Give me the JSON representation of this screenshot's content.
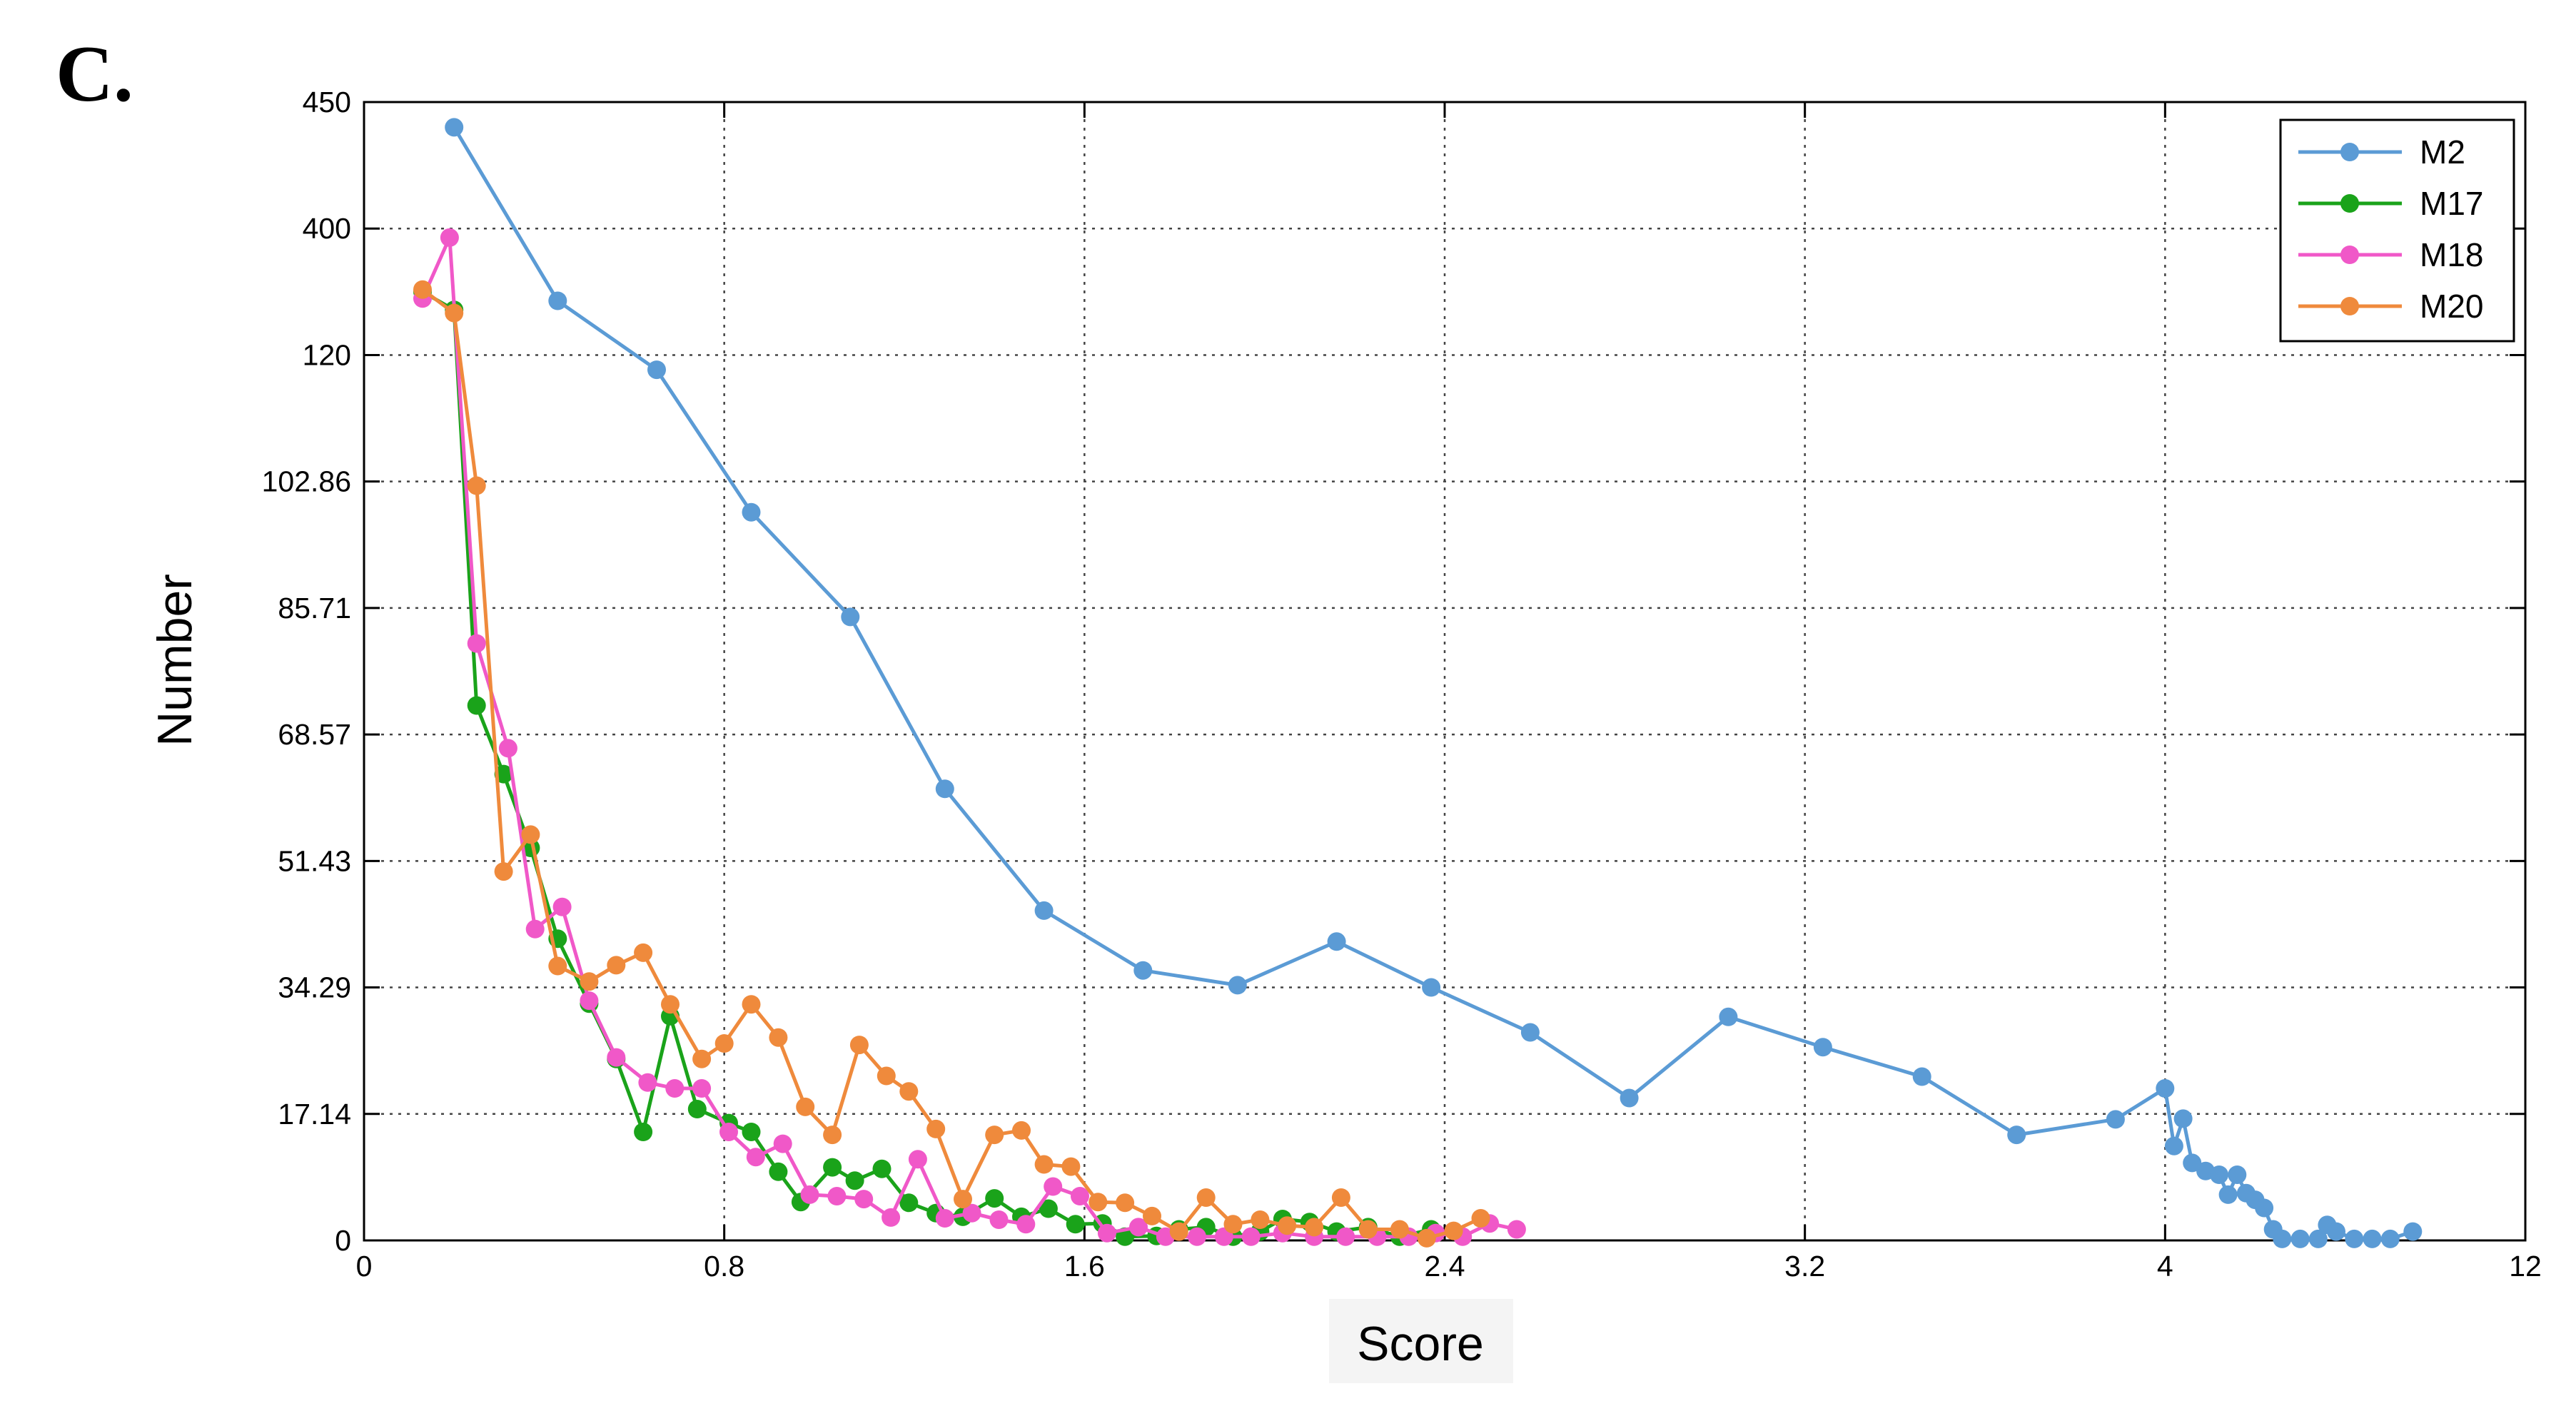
{
  "panel_label": "C.",
  "chart_data": {
    "type": "line",
    "xlabel": "Score",
    "ylabel": "Number",
    "x_tick_labels": [
      "0",
      "0.8",
      "1.6",
      "2.4",
      "3.2",
      "4",
      "12"
    ],
    "y_tick_labels": [
      "0",
      "17.14",
      "34.29",
      "51.43",
      "68.57",
      "85.71",
      "102.86",
      "120",
      "400",
      "450"
    ],
    "grid": true,
    "legend_position": "top-right",
    "series": [
      {
        "name": "M2",
        "color": "#5b9bd5",
        "points": [
          [
            0.2,
            440
          ],
          [
            0.43,
            240
          ],
          [
            0.65,
            118
          ],
          [
            0.86,
            98.7
          ],
          [
            1.08,
            84.5
          ],
          [
            1.29,
            61.2
          ],
          [
            1.51,
            44.7
          ],
          [
            1.73,
            36.6
          ],
          [
            1.94,
            34.6
          ],
          [
            2.16,
            40.5
          ],
          [
            2.37,
            34.3
          ],
          [
            2.59,
            28.2
          ],
          [
            2.81,
            19.3
          ],
          [
            3.03,
            30.3
          ],
          [
            3.24,
            26.2
          ],
          [
            3.46,
            22.2
          ],
          [
            3.67,
            14.3
          ],
          [
            3.89,
            16.4
          ],
          [
            4.0,
            20.6
          ],
          [
            4.02,
            12.8
          ],
          [
            4.04,
            16.5
          ],
          [
            4.06,
            10.5
          ],
          [
            4.09,
            9.4
          ],
          [
            4.12,
            8.9
          ],
          [
            4.14,
            6.2
          ],
          [
            4.16,
            8.9
          ],
          [
            4.18,
            6.4
          ],
          [
            4.2,
            5.5
          ],
          [
            4.22,
            4.4
          ],
          [
            4.24,
            1.5
          ],
          [
            4.26,
            0.2
          ],
          [
            4.3,
            0.2
          ],
          [
            4.34,
            0.2
          ],
          [
            4.36,
            2.1
          ],
          [
            4.38,
            1.2
          ],
          [
            4.42,
            0.2
          ],
          [
            4.46,
            0.2
          ],
          [
            4.5,
            0.2
          ],
          [
            4.55,
            1.2
          ]
        ]
      },
      {
        "name": "M17",
        "color": "#1aa31a",
        "points": [
          [
            0.13,
            260
          ],
          [
            0.2,
            220
          ],
          [
            0.25,
            72.5
          ],
          [
            0.31,
            63.2
          ],
          [
            0.37,
            53.2
          ],
          [
            0.43,
            40.9
          ],
          [
            0.5,
            32.1
          ],
          [
            0.56,
            24.6
          ],
          [
            0.62,
            14.7
          ],
          [
            0.68,
            30.4
          ],
          [
            0.74,
            17.8
          ],
          [
            0.81,
            15.9
          ],
          [
            0.86,
            14.7
          ],
          [
            0.92,
            9.3
          ],
          [
            0.97,
            5.2
          ],
          [
            1.04,
            9.9
          ],
          [
            1.09,
            8.1
          ],
          [
            1.15,
            9.7
          ],
          [
            1.21,
            5.1
          ],
          [
            1.27,
            3.7
          ],
          [
            1.33,
            3.2
          ],
          [
            1.4,
            5.7
          ],
          [
            1.46,
            3.2
          ],
          [
            1.52,
            4.3
          ],
          [
            1.58,
            2.2
          ],
          [
            1.64,
            2.3
          ],
          [
            1.69,
            0.5
          ],
          [
            1.76,
            0.6
          ],
          [
            1.81,
            1.5
          ],
          [
            1.87,
            1.8
          ],
          [
            1.93,
            0.5
          ],
          [
            1.99,
            1.2
          ],
          [
            2.04,
            2.9
          ],
          [
            2.1,
            2.5
          ],
          [
            2.16,
            1.2
          ],
          [
            2.23,
            1.8
          ],
          [
            2.3,
            0.5
          ],
          [
            2.37,
            1.5
          ]
        ]
      },
      {
        "name": "M18",
        "color": "#f058c8",
        "points": [
          [
            0.13,
            245
          ],
          [
            0.19,
            380
          ],
          [
            0.25,
            80.9
          ],
          [
            0.32,
            66.7
          ],
          [
            0.38,
            42.2
          ],
          [
            0.44,
            45.2
          ],
          [
            0.5,
            32.5
          ],
          [
            0.56,
            24.8
          ],
          [
            0.63,
            21.4
          ],
          [
            0.69,
            20.6
          ],
          [
            0.75,
            20.6
          ],
          [
            0.81,
            14.7
          ],
          [
            0.87,
            11.3
          ],
          [
            0.93,
            13.1
          ],
          [
            0.99,
            6.2
          ],
          [
            1.05,
            6.0
          ],
          [
            1.11,
            5.6
          ],
          [
            1.17,
            3.1
          ],
          [
            1.23,
            11.0
          ],
          [
            1.29,
            3.0
          ],
          [
            1.35,
            3.7
          ],
          [
            1.41,
            2.8
          ],
          [
            1.47,
            2.2
          ],
          [
            1.53,
            7.3
          ],
          [
            1.59,
            6.0
          ],
          [
            1.65,
            1.0
          ],
          [
            1.72,
            1.8
          ],
          [
            1.78,
            0.5
          ],
          [
            1.85,
            0.5
          ],
          [
            1.91,
            0.5
          ],
          [
            1.97,
            0.5
          ],
          [
            2.04,
            1.0
          ],
          [
            2.11,
            0.5
          ],
          [
            2.18,
            0.5
          ],
          [
            2.25,
            0.5
          ],
          [
            2.32,
            0.5
          ],
          [
            2.38,
            1.0
          ],
          [
            2.44,
            0.5
          ],
          [
            2.5,
            2.3
          ],
          [
            2.56,
            1.5
          ]
        ]
      },
      {
        "name": "M20",
        "color": "#ef8a3c",
        "points": [
          [
            0.13,
            265
          ],
          [
            0.2,
            213
          ],
          [
            0.25,
            102.3
          ],
          [
            0.31,
            50.0
          ],
          [
            0.37,
            55.0
          ],
          [
            0.43,
            37.2
          ],
          [
            0.5,
            35.1
          ],
          [
            0.56,
            37.3
          ],
          [
            0.62,
            39.0
          ],
          [
            0.68,
            32.0
          ],
          [
            0.75,
            24.6
          ],
          [
            0.8,
            26.7
          ],
          [
            0.86,
            32.0
          ],
          [
            0.92,
            27.5
          ],
          [
            0.98,
            18.1
          ],
          [
            1.04,
            14.3
          ],
          [
            1.1,
            26.5
          ],
          [
            1.16,
            22.3
          ],
          [
            1.21,
            20.2
          ],
          [
            1.27,
            15.1
          ],
          [
            1.33,
            5.6
          ],
          [
            1.4,
            14.3
          ],
          [
            1.46,
            14.9
          ],
          [
            1.51,
            10.3
          ],
          [
            1.57,
            10.0
          ],
          [
            1.63,
            5.2
          ],
          [
            1.69,
            5.1
          ],
          [
            1.75,
            3.3
          ],
          [
            1.81,
            1.2
          ],
          [
            1.87,
            5.8
          ],
          [
            1.93,
            2.2
          ],
          [
            1.99,
            2.8
          ],
          [
            2.05,
            2.0
          ],
          [
            2.11,
            1.8
          ],
          [
            2.17,
            5.8
          ],
          [
            2.23,
            1.5
          ],
          [
            2.3,
            1.5
          ],
          [
            2.36,
            0.3
          ],
          [
            2.42,
            1.3
          ],
          [
            2.48,
            3.0
          ]
        ]
      }
    ]
  }
}
